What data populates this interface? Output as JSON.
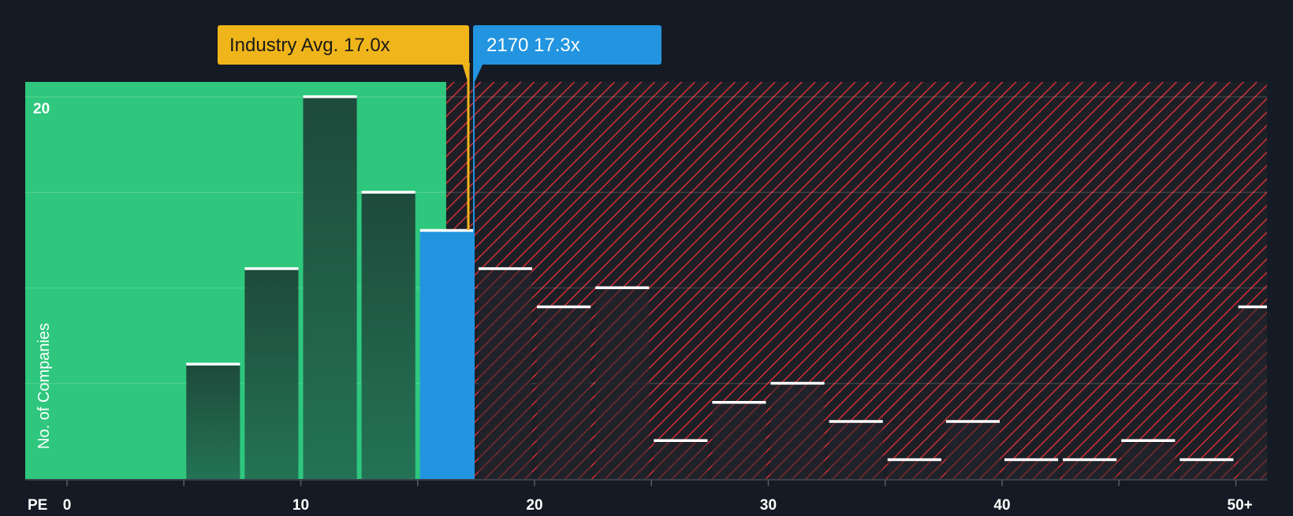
{
  "chart_data": {
    "type": "bar",
    "ylabel": "No. of Companies",
    "xlabel": "PE",
    "ymax_label": "20",
    "xlim": [
      0,
      51.5
    ],
    "ylim": [
      0,
      20.6
    ],
    "bin_width": 2.5,
    "x_ticks": [
      {
        "value": 0,
        "label": "0"
      },
      {
        "value": 10,
        "label": "10"
      },
      {
        "value": 20,
        "label": "20"
      },
      {
        "value": 30,
        "label": "30"
      },
      {
        "value": 40,
        "label": "40"
      },
      {
        "value": 50,
        "label": "50+"
      }
    ],
    "bins": [
      {
        "start": 0,
        "count": 0
      },
      {
        "start": 2.5,
        "count": 0
      },
      {
        "start": 5,
        "count": 6
      },
      {
        "start": 7.5,
        "count": 11
      },
      {
        "start": 10,
        "count": 20
      },
      {
        "start": 12.5,
        "count": 15
      },
      {
        "start": 15,
        "count": 13
      },
      {
        "start": 17.5,
        "count": 11
      },
      {
        "start": 20,
        "count": 9
      },
      {
        "start": 22.5,
        "count": 10
      },
      {
        "start": 25,
        "count": 2
      },
      {
        "start": 27.5,
        "count": 4
      },
      {
        "start": 30,
        "count": 5
      },
      {
        "start": 32.5,
        "count": 3
      },
      {
        "start": 35,
        "count": 1
      },
      {
        "start": 37.5,
        "count": 3
      },
      {
        "start": 40,
        "count": 1
      },
      {
        "start": 42.5,
        "count": 1
      },
      {
        "start": 45,
        "count": 2
      },
      {
        "start": 47.5,
        "count": 1
      },
      {
        "start": 50,
        "count": 9
      }
    ],
    "industry_avg": {
      "value": 17.0,
      "label": "Industry Avg. 17.0x"
    },
    "company": {
      "value": 17.3,
      "label": "2170 17.3x",
      "highlight_bin_start": 15
    },
    "colors": {
      "background": "#151b24",
      "fair_region": "#2ec77d",
      "overvalued_region": "#d32f35",
      "bar_in_fair": "#1f4a3c",
      "bar_in_over": "#1c2026",
      "company_bar": "#2394e0",
      "industry_marker": "#f0b51a",
      "company_marker": "#2394e0",
      "bar_cap": "#ffffff",
      "axis_text": "#ffffff"
    }
  }
}
